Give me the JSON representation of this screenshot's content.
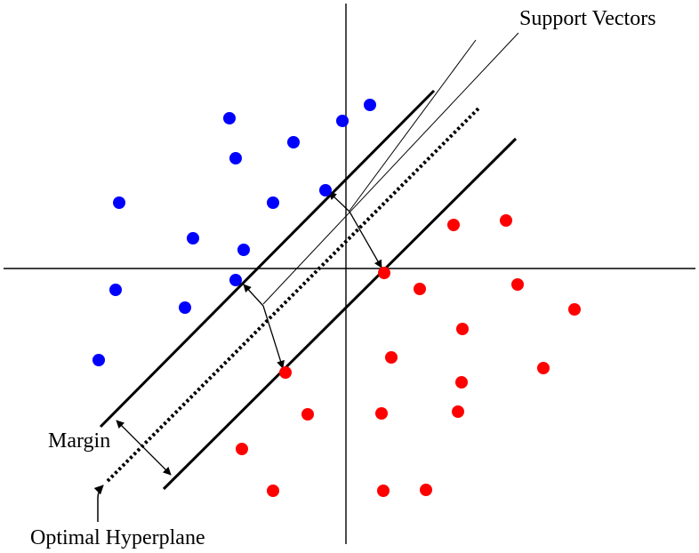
{
  "labels": {
    "support_vectors": "Support Vectors",
    "margin": "Margin",
    "optimal_hyperplane": "Optimal Hyperplane"
  },
  "colors": {
    "class_a": "#0000ff",
    "class_b": "#ff0000",
    "lines": "#000000",
    "background": "#ffffff"
  }
}
